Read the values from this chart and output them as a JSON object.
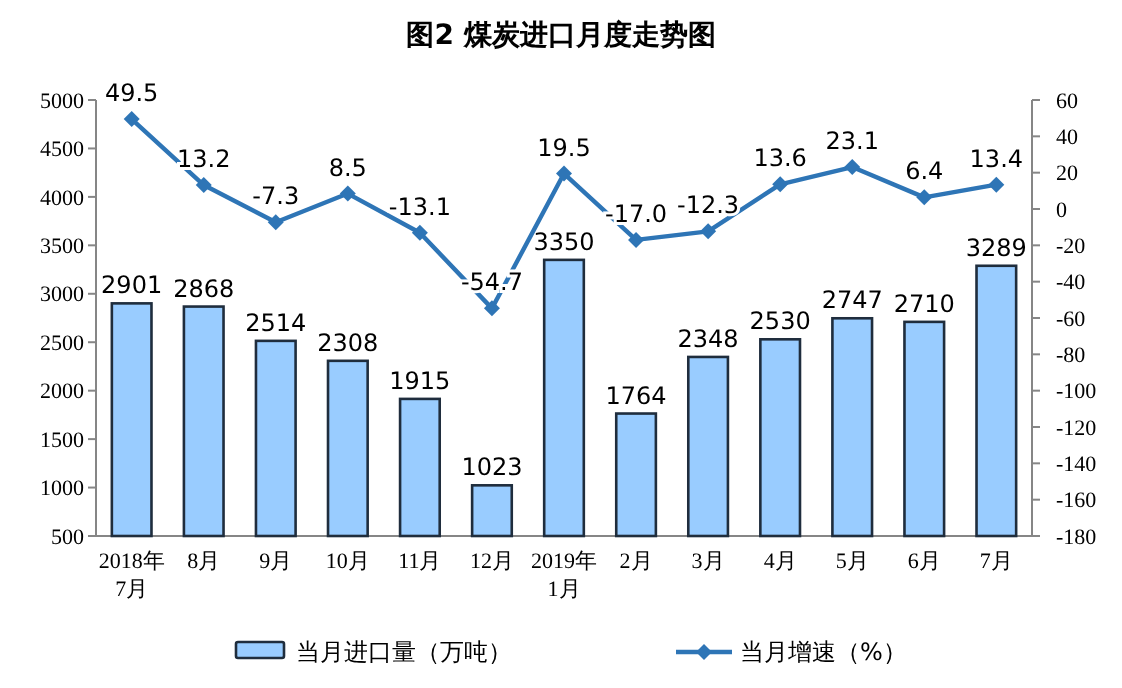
{
  "chart_data": {
    "type": "bar",
    "title": "图2  煤炭进口月度走势图",
    "categories": [
      "2018年\n7月",
      "8月",
      "9月",
      "10月",
      "11月",
      "12月",
      "2019年\n1月",
      "2月",
      "3月",
      "4月",
      "5月",
      "6月",
      "7月"
    ],
    "series": [
      {
        "name": "当月进口量（万吨）",
        "color": "#99ccff",
        "values": [
          2901,
          2868,
          2514,
          2308,
          1915,
          1023,
          3350,
          1764,
          2348,
          2530,
          2747,
          2710,
          3289
        ]
      },
      {
        "name": "当月增速（%）",
        "type": "line",
        "axis": "y2",
        "color": "#2e75b6",
        "marker": "diamond",
        "values": [
          49.5,
          13.2,
          -7.3,
          8.5,
          -13.1,
          -54.7,
          19.5,
          -17.0,
          -12.3,
          13.6,
          23.1,
          6.4,
          13.4
        ],
        "value_labels": [
          "49.5",
          "13.2",
          "-7.3",
          "8.5",
          "-13.1",
          "-54.7",
          "19.5",
          "-17.0",
          "-12.3",
          "13.6",
          "23.1",
          "6.4",
          "13.4"
        ]
      }
    ],
    "data_labels": true,
    "ylim": [
      500,
      5000
    ],
    "yticks": [
      500,
      1000,
      1500,
      2000,
      2500,
      3000,
      3500,
      4000,
      4500,
      5000
    ],
    "y2lim": [
      -180,
      60
    ],
    "y2ticks": [
      -180,
      -160,
      -140,
      -120,
      -100,
      -80,
      -60,
      -40,
      -20,
      0,
      20,
      40,
      60
    ],
    "grid": false,
    "legend": "bottom"
  }
}
